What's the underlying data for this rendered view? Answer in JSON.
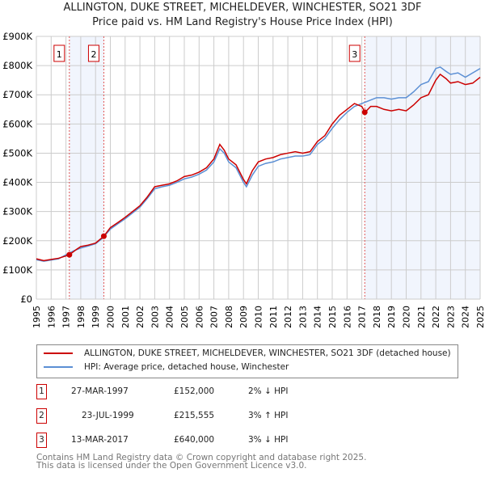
{
  "chart_data": {
    "type": "line",
    "title": "ALLINGTON, DUKE STREET, MICHELDEVER, WINCHESTER, SO21 3DF",
    "subtitle": "Price paid vs. HM Land Registry's House Price Index (HPI)",
    "xlabel": "",
    "ylabel": "",
    "xlim": [
      1995,
      2025
    ],
    "ylim": [
      0,
      900000
    ],
    "grid": true,
    "x_ticks": [
      "1995",
      "1996",
      "1997",
      "1998",
      "1999",
      "2000",
      "2001",
      "2002",
      "2003",
      "2004",
      "2005",
      "2006",
      "2007",
      "2008",
      "2009",
      "2010",
      "2011",
      "2012",
      "2013",
      "2014",
      "2015",
      "2016",
      "2017",
      "2018",
      "2019",
      "2020",
      "2021",
      "2022",
      "2023",
      "2024",
      "2025"
    ],
    "y_ticks": [
      "£0",
      "£100K",
      "£200K",
      "£300K",
      "£400K",
      "£500K",
      "£600K",
      "£700K",
      "£800K",
      "£900K"
    ],
    "series": [
      {
        "name": "ALLINGTON, DUKE STREET, MICHELDEVER, WINCHESTER, SO21 3DF (detached house)",
        "color": "#cc0000",
        "x": [
          1995,
          1995.5,
          1996,
          1996.5,
          1997,
          1997.23,
          1997.7,
          1998,
          1998.5,
          1999,
          1999.56,
          2000,
          2000.5,
          2001,
          2001.5,
          2002,
          2002.5,
          2003,
          2003.5,
          2004,
          2004.5,
          2005,
          2005.5,
          2006,
          2006.5,
          2007,
          2007.4,
          2007.7,
          2008,
          2008.5,
          2009,
          2009.2,
          2009.6,
          2010,
          2010.5,
          2011,
          2011.5,
          2012,
          2012.5,
          2013,
          2013.5,
          2014,
          2014.5,
          2015,
          2015.5,
          2016,
          2016.5,
          2017,
          2017.22,
          2017.6,
          2018,
          2018.5,
          2019,
          2019.5,
          2020,
          2020.5,
          2021,
          2021.5,
          2022,
          2022.3,
          2022.7,
          2023,
          2023.5,
          2024,
          2024.5,
          2025
        ],
        "values": [
          138000,
          132000,
          136000,
          140000,
          148000,
          152000,
          170000,
          180000,
          185000,
          192000,
          215555,
          245000,
          262000,
          280000,
          300000,
          320000,
          350000,
          385000,
          390000,
          395000,
          405000,
          420000,
          425000,
          435000,
          450000,
          480000,
          530000,
          510000,
          480000,
          460000,
          410000,
          395000,
          440000,
          470000,
          480000,
          485000,
          495000,
          500000,
          505000,
          500000,
          505000,
          540000,
          560000,
          600000,
          630000,
          650000,
          670000,
          660000,
          640000,
          660000,
          660000,
          650000,
          645000,
          650000,
          645000,
          665000,
          690000,
          700000,
          750000,
          770000,
          755000,
          740000,
          745000,
          735000,
          740000,
          760000
        ]
      },
      {
        "name": "HPI: Average price, detached house, Winchester",
        "color": "#5b8fd4",
        "x": [
          1995,
          1995.5,
          1996,
          1996.5,
          1997,
          1997.5,
          1998,
          1998.5,
          1999,
          1999.5,
          2000,
          2000.5,
          2001,
          2001.5,
          2002,
          2002.5,
          2003,
          2003.5,
          2004,
          2004.5,
          2005,
          2005.5,
          2006,
          2006.5,
          2007,
          2007.4,
          2007.7,
          2008,
          2008.5,
          2009,
          2009.2,
          2009.6,
          2010,
          2010.5,
          2011,
          2011.5,
          2012,
          2012.5,
          2013,
          2013.5,
          2014,
          2014.5,
          2015,
          2015.5,
          2016,
          2016.5,
          2017,
          2017.5,
          2018,
          2018.5,
          2019,
          2019.5,
          2020,
          2020.5,
          2021,
          2021.5,
          2022,
          2022.3,
          2022.7,
          2023,
          2023.5,
          2024,
          2024.5,
          2025
        ],
        "values": [
          135000,
          130000,
          134000,
          138000,
          152000,
          165000,
          175000,
          182000,
          190000,
          210000,
          240000,
          258000,
          275000,
          295000,
          315000,
          345000,
          378000,
          385000,
          390000,
          400000,
          412000,
          418000,
          428000,
          442000,
          470000,
          515000,
          500000,
          470000,
          450000,
          400000,
          385000,
          425000,
          455000,
          465000,
          470000,
          480000,
          485000,
          490000,
          490000,
          495000,
          530000,
          550000,
          585000,
          615000,
          640000,
          660000,
          670000,
          680000,
          690000,
          690000,
          685000,
          690000,
          690000,
          710000,
          735000,
          745000,
          790000,
          795000,
          780000,
          770000,
          775000,
          760000,
          775000,
          790000
        ]
      }
    ],
    "annotations": [
      {
        "label": "1",
        "x": 1997.23
      },
      {
        "label": "2",
        "x": 1999.56
      },
      {
        "label": "3",
        "x": 2017.2
      }
    ],
    "shaded_ranges": [
      [
        1997.23,
        1999.56
      ],
      [
        2017.2,
        2025
      ]
    ],
    "legend_placement": "below"
  },
  "table": [
    {
      "num": "1",
      "date": "27-MAR-1997",
      "price": "£152,000",
      "hpi": "2% ↓ HPI"
    },
    {
      "num": "2",
      "date": "23-JUL-1999",
      "price": "£215,555",
      "hpi": "3% ↑ HPI"
    },
    {
      "num": "3",
      "date": "13-MAR-2017",
      "price": "£640,000",
      "hpi": "3% ↓ HPI"
    }
  ],
  "footer": {
    "line1": "Contains HM Land Registry data © Crown copyright and database right 2025.",
    "line2": "This data is licensed under the Open Government Licence v3.0."
  }
}
